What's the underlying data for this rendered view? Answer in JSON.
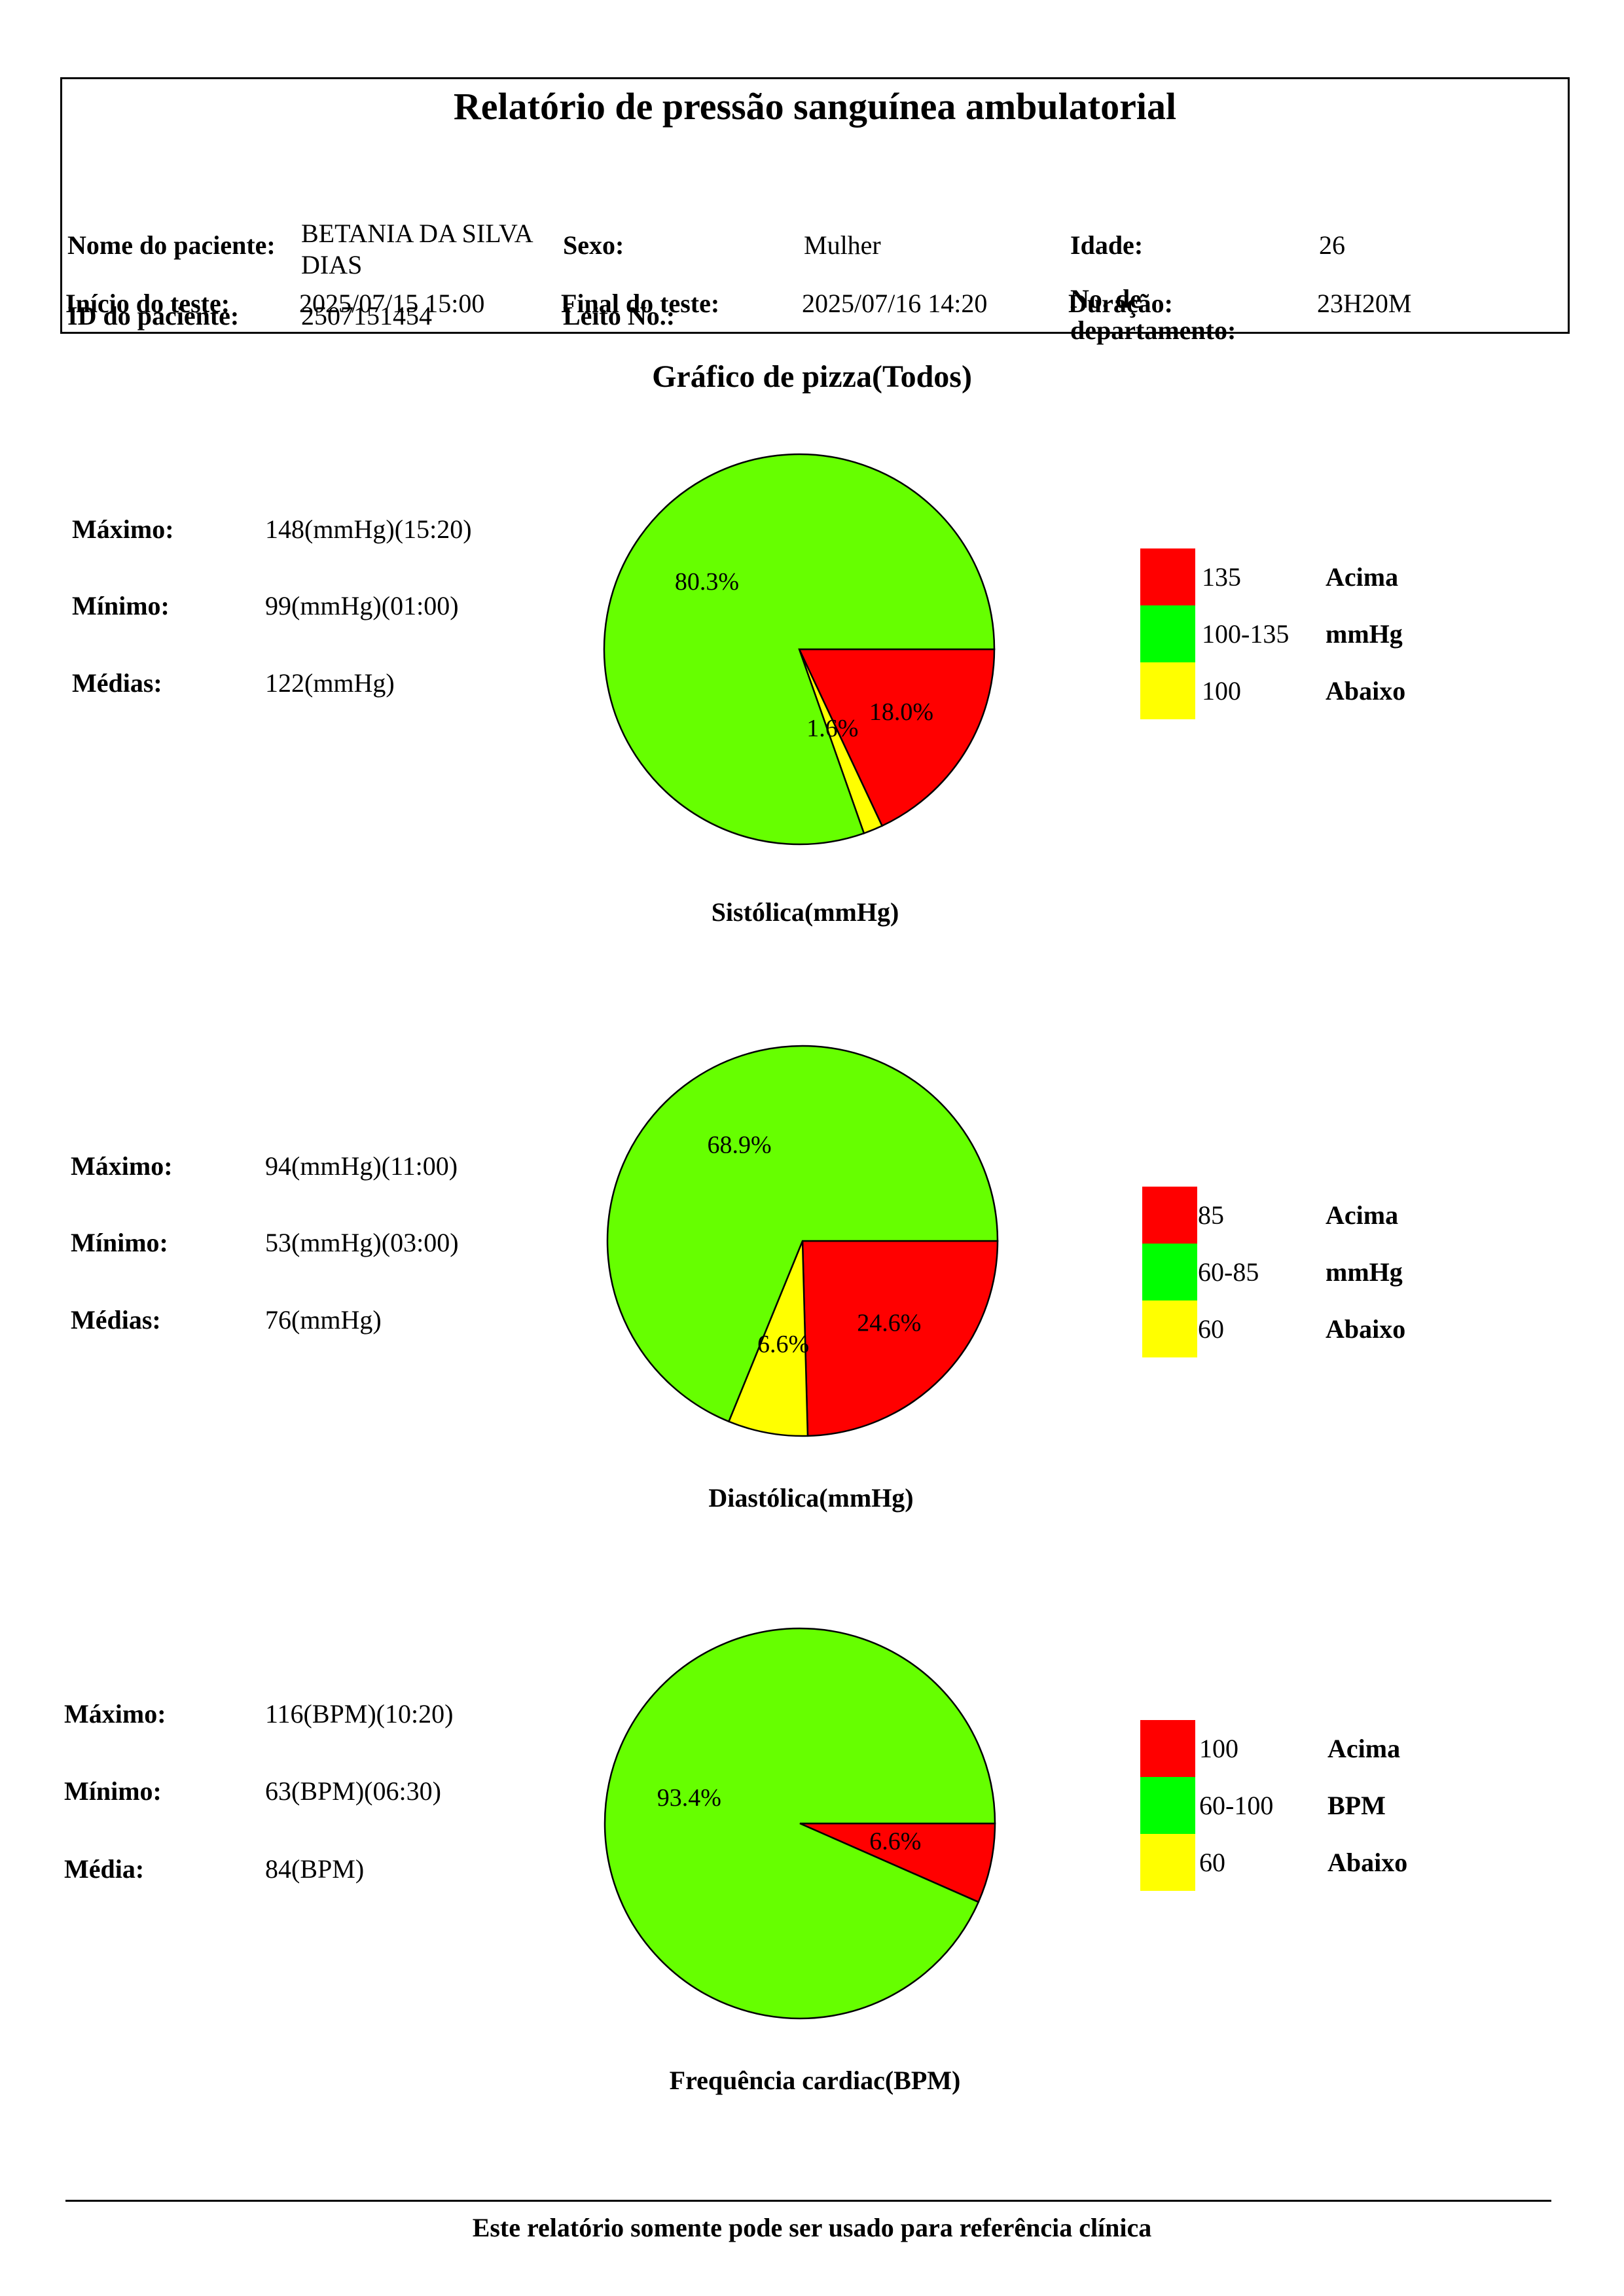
{
  "header": {
    "title": "Relatório de pressão sanguínea ambulatorial",
    "patient_name_label": "Nome do paciente:",
    "patient_name_value": "BETANIA DA SILVA DIAS",
    "sex_label": "Sexo:",
    "sex_value": "Mulher",
    "age_label": "Idade:",
    "age_value": "26",
    "patient_id_label": "ID do paciente:",
    "patient_id_value": "2507151454",
    "bed_label": "Leito No.:",
    "bed_value": "",
    "department_label": "No. de departamento:",
    "department_value": "",
    "start_label": "Início do teste:",
    "start_value": "2025/07/15 15:00",
    "end_label": "Final do teste:",
    "end_value": "2025/07/16 14:20",
    "duration_label": "Duração:",
    "duration_value": "23H20M"
  },
  "section_title": "Gráfico de pizza(Todos)",
  "colors": {
    "above": "#ff0000",
    "normal_slice": "#66ff00",
    "normal_legend": "#00ff00",
    "below": "#ffff00"
  },
  "charts": [
    {
      "stats": [
        {
          "label": "Máximo:",
          "value": "148(mmHg)(15:20)"
        },
        {
          "label": "Mínimo:",
          "value": "99(mmHg)(01:00)"
        },
        {
          "label": "Médias:",
          "value": "122(mmHg)"
        }
      ],
      "caption": "Sistólica(mmHg)",
      "legend": [
        {
          "range": "135",
          "word": "Acima"
        },
        {
          "range": "100-135",
          "word": "mmHg"
        },
        {
          "range": "100",
          "word": "Abaixo"
        }
      ]
    },
    {
      "stats": [
        {
          "label": "Máximo:",
          "value": "94(mmHg)(11:00)"
        },
        {
          "label": "Mínimo:",
          "value": "53(mmHg)(03:00)"
        },
        {
          "label": "Médias:",
          "value": "76(mmHg)"
        }
      ],
      "caption": "Diastólica(mmHg)",
      "legend": [
        {
          "range": "85",
          "word": "Acima"
        },
        {
          "range": "60-85",
          "word": "mmHg"
        },
        {
          "range": "60",
          "word": "Abaixo"
        }
      ]
    },
    {
      "stats": [
        {
          "label": "Máximo:",
          "value": "116(BPM)(10:20)"
        },
        {
          "label": "Mínimo:",
          "value": "63(BPM)(06:30)"
        },
        {
          "label": "Média:",
          "value": "84(BPM)"
        }
      ],
      "caption": "Frequência cardiac(BPM)",
      "legend": [
        {
          "range": "100",
          "word": "Acima"
        },
        {
          "range": "60-100",
          "word": "BPM"
        },
        {
          "range": "60",
          "word": "Abaixo"
        }
      ]
    }
  ],
  "chart_data": [
    {
      "type": "pie",
      "title": "Sistólica(mmHg)",
      "slices": [
        {
          "category": "Acima",
          "value": 18.0,
          "label": "18.0%",
          "color": "#ff0000"
        },
        {
          "category": "mmHg",
          "value": 80.3,
          "label": "80.3%",
          "color": "#66ff00"
        },
        {
          "category": "Abaixo",
          "value": 1.6,
          "label": "1.6%",
          "color": "#ffff00"
        }
      ]
    },
    {
      "type": "pie",
      "title": "Diastólica(mmHg)",
      "slices": [
        {
          "category": "Acima",
          "value": 24.6,
          "label": "24.6%",
          "color": "#ff0000"
        },
        {
          "category": "mmHg",
          "value": 68.9,
          "label": "68.9%",
          "color": "#66ff00"
        },
        {
          "category": "Abaixo",
          "value": 6.6,
          "label": "6.6%",
          "color": "#ffff00"
        }
      ]
    },
    {
      "type": "pie",
      "title": "Frequência cardiac(BPM)",
      "slices": [
        {
          "category": "Acima",
          "value": 6.6,
          "label": "6.6%",
          "color": "#ff0000"
        },
        {
          "category": "BPM",
          "value": 93.4,
          "label": "93.4%",
          "color": "#66ff00"
        }
      ]
    }
  ],
  "footer": {
    "note": "Este relatório somente pode ser usado para referência clínica"
  }
}
